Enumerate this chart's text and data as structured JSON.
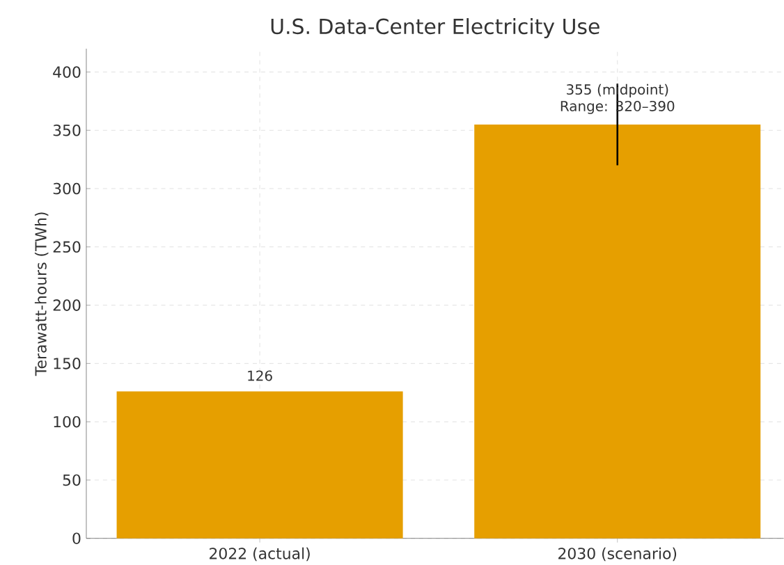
{
  "chart_data": {
    "type": "bar",
    "title": "U.S. Data-Center Electricity Use",
    "ylabel": "Terawatt-hours (TWh)",
    "categories": [
      "2022 (actual)",
      "2030 (scenario)"
    ],
    "values": [
      126,
      355
    ],
    "color": "#e69f00",
    "errors": [
      null,
      [
        320,
        390
      ]
    ],
    "value_labels": [
      "126",
      "355 (midpoint) Range: 320–390"
    ],
    "ylim": [
      0,
      420
    ],
    "yticks": [
      0,
      50,
      100,
      150,
      200,
      250,
      300,
      350,
      400
    ],
    "grid": true
  }
}
